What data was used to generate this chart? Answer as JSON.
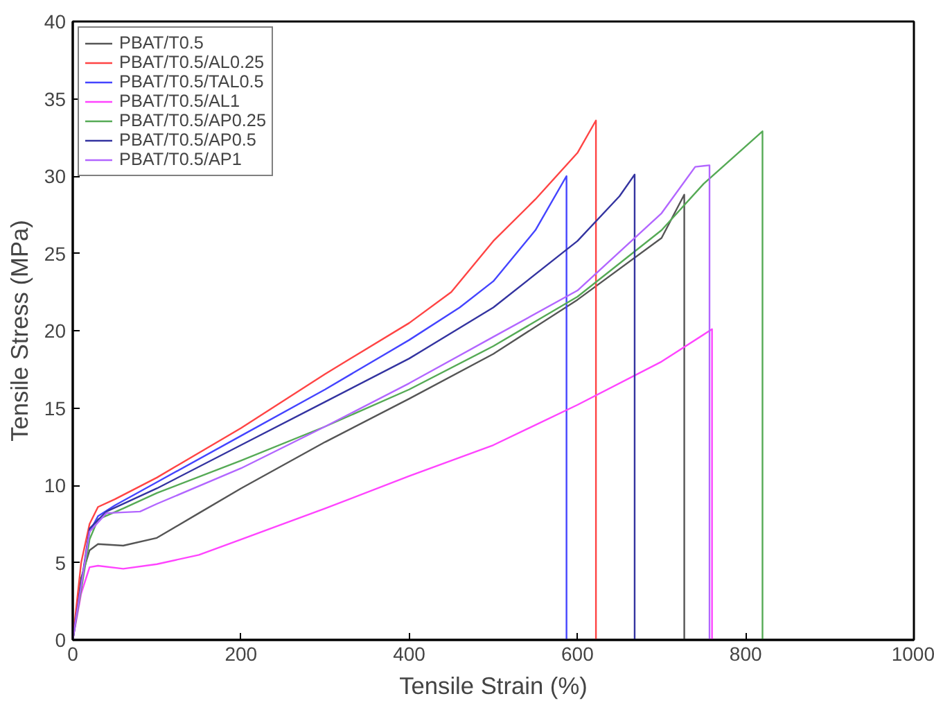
{
  "chart_data": {
    "type": "line",
    "xlabel": "Tensile Strain (%)",
    "ylabel": "Tensile Stress (MPa)",
    "xlim": [
      0,
      1000
    ],
    "ylim": [
      0,
      40
    ],
    "xticks": [
      0,
      200,
      400,
      600,
      800,
      1000
    ],
    "yticks": [
      0,
      5,
      10,
      15,
      20,
      25,
      30,
      35,
      40
    ],
    "grid": false,
    "legend": "top left",
    "line_style": "solid",
    "marker": "none",
    "series": [
      {
        "name": "PBAT/T0.5",
        "color": "#555555",
        "x": [
          0,
          10,
          20,
          30,
          60,
          100,
          150,
          200,
          300,
          400,
          500,
          600,
          700,
          727,
          727
        ],
        "values": [
          0,
          4,
          5.8,
          6.2,
          6.1,
          6.6,
          8.2,
          9.8,
          12.8,
          15.6,
          18.5,
          22,
          26,
          28.8,
          0
        ]
      },
      {
        "name": "PBAT/T0.5/AL0.25",
        "color": "#ff4444",
        "x": [
          0,
          10,
          20,
          30,
          50,
          100,
          200,
          300,
          400,
          450,
          500,
          550,
          600,
          622,
          622
        ],
        "values": [
          0,
          5,
          7.5,
          8.6,
          9.1,
          10.5,
          13.7,
          17.2,
          20.5,
          22.5,
          25.8,
          28.5,
          31.5,
          33.6,
          0
        ]
      },
      {
        "name": "PBAT/T0.5/TAL0.5",
        "color": "#4444ff",
        "x": [
          0,
          20,
          30,
          50,
          100,
          200,
          300,
          400,
          460,
          500,
          550,
          587,
          587
        ],
        "values": [
          0,
          7,
          8,
          8.7,
          10.2,
          13.2,
          16.2,
          19.4,
          21.5,
          23.2,
          26.5,
          30,
          0
        ]
      },
      {
        "name": "PBAT/T0.5/AL1",
        "color": "#ff44ff",
        "x": [
          0,
          10,
          20,
          30,
          60,
          100,
          150,
          200,
          300,
          400,
          500,
          600,
          700,
          760,
          760
        ],
        "values": [
          0,
          3,
          4.7,
          4.8,
          4.6,
          4.9,
          5.5,
          6.5,
          8.5,
          10.6,
          12.6,
          15.2,
          18,
          20.1,
          0
        ]
      },
      {
        "name": "PBAT/T0.5/AP0.25",
        "color": "#55aa55",
        "x": [
          0,
          20,
          30,
          60,
          100,
          200,
          300,
          400,
          500,
          600,
          700,
          750,
          820,
          820
        ],
        "values": [
          0,
          6.5,
          7.8,
          8.5,
          9.5,
          11.6,
          13.8,
          16.2,
          19,
          22.2,
          26.5,
          29.5,
          32.9,
          0
        ]
      },
      {
        "name": "PBAT/T0.5/AP0.5",
        "color": "#3333a0",
        "x": [
          0,
          20,
          40,
          100,
          200,
          300,
          400,
          500,
          600,
          650,
          668,
          668
        ],
        "values": [
          0,
          7.2,
          8.3,
          9.8,
          12.6,
          15.4,
          18.2,
          21.5,
          25.8,
          28.7,
          30.1,
          0
        ]
      },
      {
        "name": "PBAT/T0.5/AP1",
        "color": "#b266ff",
        "x": [
          0,
          20,
          40,
          80,
          100,
          200,
          300,
          400,
          500,
          600,
          700,
          740,
          757,
          757
        ],
        "values": [
          0,
          7,
          8.2,
          8.3,
          8.8,
          11.1,
          13.8,
          16.6,
          19.6,
          22.6,
          27.6,
          30.6,
          30.7,
          0
        ]
      }
    ]
  }
}
